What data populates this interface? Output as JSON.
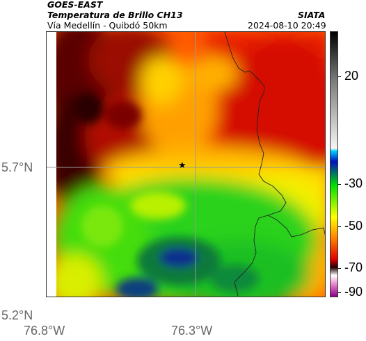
{
  "header": {
    "source": "GOES-EAST",
    "product": "Temperatura de Brillo CH13",
    "route": "Vía Medellín - Quibdó 50km",
    "org": "SIATA",
    "datetime": "2024-08-10 20:49"
  },
  "axes": {
    "x_ticks": [
      {
        "value": -76.8,
        "label": "76.8°W"
      },
      {
        "value": -76.3,
        "label": "76.3°W"
      }
    ],
    "y_ticks": [
      {
        "value": 5.7,
        "label": "5.7°N"
      },
      {
        "value": 5.2,
        "label": "5.2°N"
      }
    ]
  },
  "colorbar": {
    "unit_hint": "brightness temperature (°C)",
    "ticks": [
      "20",
      "-30",
      "-50",
      "-70",
      "-90"
    ],
    "range": [
      -95,
      35
    ]
  },
  "marker": {
    "symbol": "★",
    "lon": -76.32,
    "lat": 5.7
  },
  "colors": {
    "cold": "#0a1f8f",
    "mid_cold": "#16c10f",
    "mid": "#f2f000",
    "warm": "#ff3a00",
    "hot": "#2a0000"
  }
}
